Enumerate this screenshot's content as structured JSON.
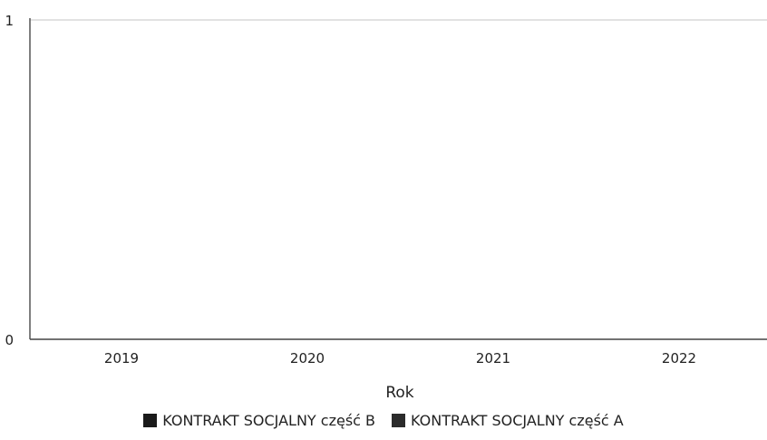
{
  "chart_data": {
    "type": "bar",
    "title": "",
    "xlabel": "Rok",
    "ylabel": "",
    "categories": [
      "2019",
      "2020",
      "2021",
      "2022"
    ],
    "ylim": [
      0,
      1
    ],
    "yticks": [
      "0",
      "1"
    ],
    "grid": false,
    "legend_position": "bottom",
    "series": [
      {
        "name": "KONTRAKT SOCJALNY część B",
        "color": "#1a1a1a",
        "values": [
          0,
          0,
          0,
          0
        ]
      },
      {
        "name": "KONTRAKT SOCJALNY część A",
        "color": "#2b2b2b",
        "values": [
          0,
          0,
          0,
          0
        ]
      }
    ]
  }
}
